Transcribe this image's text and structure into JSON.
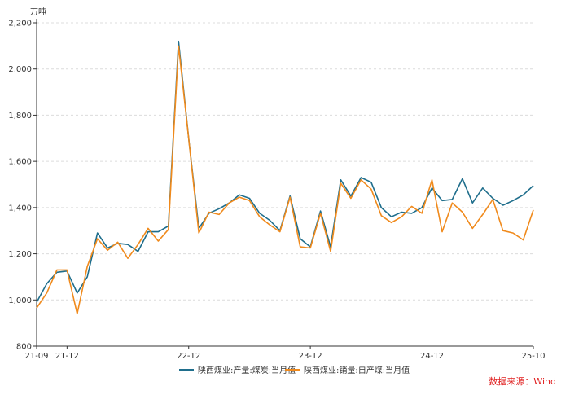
{
  "chart_data": {
    "type": "line",
    "unit": "万吨",
    "source_text": "数据来源：Wind",
    "ylim": [
      800,
      2200
    ],
    "y_ticks": [
      800,
      1000,
      1200,
      1400,
      1600,
      1800,
      2000,
      2200
    ],
    "y_tick_labels": [
      "800",
      "1,000",
      "1,200",
      "1,400",
      "1,600",
      "1,800",
      "2,000",
      "2,200"
    ],
    "grid": "horizontal dashed",
    "legend_position": "bottom",
    "x_tick_labels": [
      "21-09",
      "21-12",
      "22-12",
      "23-12",
      "24-12",
      "25-10"
    ],
    "x_tick_index": [
      0,
      3,
      15,
      27,
      39,
      49
    ],
    "x": [
      "21-09",
      "21-10",
      "21-11",
      "21-12",
      "22-01",
      "22-02",
      "22-03",
      "22-04",
      "22-05",
      "22-06",
      "22-07",
      "22-08",
      "22-09",
      "22-10",
      "22-11",
      "22-12",
      "23-01",
      "23-02",
      "23-03",
      "23-04",
      "23-05",
      "23-06",
      "23-07",
      "23-08",
      "23-09",
      "23-10",
      "23-11",
      "23-12",
      "24-01",
      "24-02",
      "24-03",
      "24-04",
      "24-05",
      "24-06",
      "24-07",
      "24-08",
      "24-09",
      "24-10",
      "24-11",
      "24-12",
      "25-01",
      "25-02",
      "25-03",
      "25-04",
      "25-05",
      "25-06",
      "25-07",
      "25-08",
      "25-09",
      "25-10"
    ],
    "series": [
      {
        "name": "陕西煤业:产量:煤炭:当月值",
        "color": "#1f6e8c",
        "values": [
          990,
          1070,
          1120,
          1125,
          1030,
          1100,
          1290,
          1225,
          1245,
          1240,
          1210,
          1295,
          1295,
          1320,
          2120,
          1700,
          1310,
          1375,
          1395,
          1420,
          1455,
          1440,
          1375,
          1345,
          1300,
          1450,
          1265,
          1230,
          1385,
          1230,
          1520,
          1450,
          1530,
          1510,
          1400,
          1360,
          1380,
          1375,
          1400,
          1485,
          1430,
          1435,
          1525,
          1420,
          1485,
          1440,
          1410,
          1430,
          1455,
          1495
        ]
      },
      {
        "name": "陕西煤业:销量:自产煤:当月值",
        "color": "#f08a1c",
        "values": [
          965,
          1030,
          1130,
          1130,
          940,
          1145,
          1265,
          1215,
          1250,
          1180,
          1240,
          1310,
          1255,
          1305,
          2100,
          1700,
          1290,
          1380,
          1370,
          1420,
          1445,
          1430,
          1360,
          1325,
          1295,
          1445,
          1230,
          1225,
          1375,
          1210,
          1505,
          1440,
          1520,
          1480,
          1365,
          1335,
          1360,
          1405,
          1375,
          1520,
          1295,
          1420,
          1380,
          1310,
          1370,
          1435,
          1300,
          1290,
          1260,
          1390
        ]
      }
    ]
  }
}
